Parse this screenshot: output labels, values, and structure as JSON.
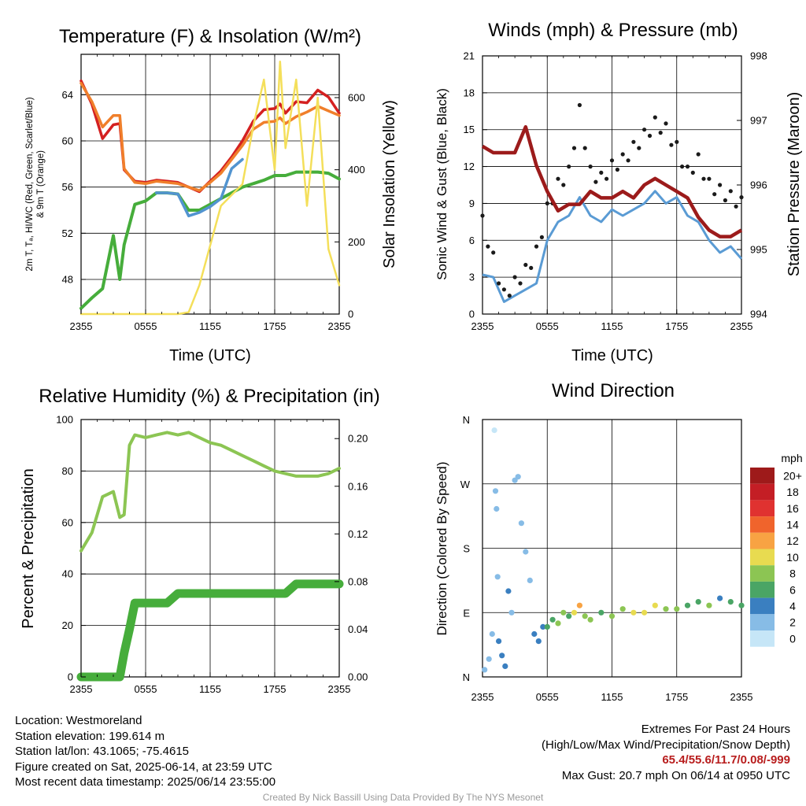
{
  "panels": {
    "temperature": {
      "title": "Temperature (F) & Insolation (W/m²)",
      "xlabel": "Time (UTC)",
      "ylabel_left_1": "2m T, Tₐ, HI/WC (Red, Green, Scarlet/Blue)",
      "ylabel_left_2": "& 9m T (Orange)",
      "ylabel_right": "Solar Insolation (Yellow)"
    },
    "winds": {
      "title": "Winds (mph) & Pressure (mb)",
      "xlabel": "Time (UTC)",
      "ylabel_left": "Sonic Wind & Gust (Blue, Black)",
      "ylabel_right": "Station Pressure (Maroon)"
    },
    "humidity": {
      "title": "Relative Humidity (%) & Precipitation (in)",
      "ylabel_left": "Percent & Precipitation"
    },
    "direction": {
      "title": "Wind Direction",
      "ylabel_left": "Direction (Colored By Speed)",
      "colorbar_title": "mph",
      "colorbar_labels": [
        "20+",
        "18",
        "16",
        "14",
        "12",
        "10",
        "8",
        "6",
        "4",
        "2",
        "0"
      ],
      "colorbar_colors": [
        "#9e1a1a",
        "#c41e25",
        "#e03230",
        "#f0642c",
        "#f8a343",
        "#e8db50",
        "#8cc553",
        "#4aa565",
        "#3a7fc0",
        "#87bce6",
        "#c6e6f7"
      ]
    }
  },
  "info": {
    "location": "Location: Westmoreland",
    "elevation": "Station elevation: 199.614 m",
    "latlon": "Station lat/lon: 43.1065; -75.4615",
    "created": "Figure created on Sat, 2025-06-14, at 23:59 UTC",
    "recent": "Most recent data timestamp: 2025/06/14 23:55:00"
  },
  "extremes": {
    "line1": "Extremes For Past 24 Hours",
    "line2": "(High/Low/Max Wind/Precipitation/Snow Depth)",
    "values": "65.4/55.6/11.7/0.08/-999",
    "gust": "Max Gust: 20.7 mph On 06/14 at 0950 UTC"
  },
  "credit": "Created By Nick Bassill Using Data Provided By The NYS Mesonet",
  "chart_data": [
    {
      "type": "line",
      "title": "Temperature (F) & Insolation (W/m2)",
      "xlabel": "Time (UTC)",
      "x_ticks": [
        "2355",
        "0555",
        "1155",
        "1755",
        "2355"
      ],
      "y_left_ticks": [
        48,
        52,
        56,
        60,
        64
      ],
      "y_left_range": [
        45,
        67.5
      ],
      "y_right_ticks": [
        0,
        200,
        400,
        600
      ],
      "y_right_range": [
        0,
        720
      ],
      "x_hours": [
        0,
        1,
        2,
        3,
        3.6,
        4,
        5,
        6,
        7,
        8,
        9,
        10,
        11,
        12,
        13,
        14,
        15,
        16,
        17,
        18,
        18.5,
        19,
        20,
        21,
        22,
        23,
        24
      ],
      "series": [
        {
          "color": "#d42020",
          "axis": "left",
          "values": [
            65.2,
            63.2,
            60.2,
            61.4,
            61.5,
            57.5,
            56.5,
            56.4,
            56.6,
            56.5,
            56.4,
            56.0,
            55.6,
            56.5,
            57.4,
            58.6,
            60.0,
            61.7,
            62.7,
            62.8,
            63.2,
            62.4,
            63.4,
            63.3,
            64.4,
            63.8,
            62.4
          ]
        },
        {
          "color": "#f07f2b",
          "axis": "left",
          "values": [
            65.0,
            63.4,
            61.2,
            62.2,
            62.2,
            57.6,
            56.4,
            56.3,
            56.5,
            56.4,
            56.3,
            56.0,
            55.7,
            56.4,
            57.2,
            58.4,
            59.6,
            61.0,
            61.6,
            61.7,
            62.0,
            61.5,
            62.1,
            62.5,
            63.0,
            62.6,
            62.2
          ]
        },
        {
          "color": "#46ad3b",
          "axis": "left",
          "values": [
            45.5,
            46.4,
            47.2,
            51.8,
            48.0,
            51.0,
            54.5,
            54.8,
            55.5,
            55.5,
            55.4,
            54.0,
            54.0,
            54.5,
            55.0,
            55.5,
            56.0,
            56.3,
            56.6,
            57.0,
            57.0,
            57.0,
            57.3,
            57.3,
            57.3,
            57.2,
            56.7
          ]
        },
        {
          "color": "#5294d0",
          "axis": "left",
          "values": [
            null,
            null,
            null,
            null,
            null,
            null,
            null,
            null,
            55.5,
            55.5,
            55.4,
            53.5,
            53.8,
            54.3,
            55.0,
            57.6,
            58.4,
            null,
            null,
            null,
            null,
            null,
            null,
            null,
            null,
            null,
            null
          ]
        },
        {
          "color": "#f4df5a",
          "axis": "right",
          "values": [
            0,
            0,
            0,
            0,
            0,
            0,
            0,
            0,
            0,
            0,
            0,
            5,
            80,
            190,
            300,
            330,
            360,
            520,
            650,
            400,
            700,
            460,
            650,
            300,
            600,
            180,
            80
          ]
        }
      ]
    },
    {
      "type": "line",
      "title": "Winds (mph) & Pressure (mb)",
      "xlabel": "Time (UTC)",
      "x_ticks": [
        "2355",
        "0555",
        "1155",
        "1755",
        "2355"
      ],
      "y_left_ticks": [
        0,
        3,
        6,
        9,
        12,
        15,
        18,
        21
      ],
      "y_left_range": [
        0,
        21
      ],
      "y_right_ticks": [
        994,
        995,
        996,
        997,
        998
      ],
      "y_right_range": [
        994,
        998
      ],
      "x_hours": [
        0,
        1,
        2,
        3,
        4,
        5,
        6,
        7,
        8,
        9,
        10,
        11,
        12,
        13,
        14,
        15,
        16,
        17,
        18,
        19,
        20,
        21,
        22,
        23,
        24
      ],
      "series": [
        {
          "color": "#5a9bd4",
          "axis": "left",
          "values": [
            3.2,
            3.0,
            1.0,
            1.5,
            2.0,
            2.5,
            6.0,
            7.5,
            8.0,
            9.5,
            8.0,
            7.5,
            8.5,
            8.0,
            8.5,
            9.0,
            10.0,
            9.0,
            9.5,
            8.0,
            7.5,
            6.0,
            5.0,
            5.5,
            4.5
          ]
        },
        {
          "color": "#1a1a1a",
          "axis": "left",
          "values": [
            8.0,
            5.0,
            2.0,
            3.0,
            4.0,
            5.5,
            9.0,
            11.0,
            12.0,
            17.0,
            12.0,
            11.5,
            12.5,
            13.0,
            14.0,
            15.0,
            16.0,
            15.5,
            14.0,
            12.0,
            13.0,
            11.0,
            10.5,
            10.0,
            9.5
          ]
        },
        {
          "color": "#9c1b1b",
          "axis": "right",
          "values": [
            996.6,
            996.5,
            996.5,
            996.5,
            996.9,
            996.3,
            995.9,
            995.6,
            995.7,
            995.7,
            995.9,
            995.8,
            995.8,
            995.9,
            995.8,
            996.0,
            996.1,
            996.0,
            995.9,
            995.8,
            995.5,
            995.3,
            995.2,
            995.2,
            995.3
          ]
        }
      ]
    },
    {
      "type": "line",
      "title": "Relative Humidity (%) & Precipitation (in)",
      "x_ticks": [
        "2355",
        "0555",
        "1155",
        "1755",
        "2355"
      ],
      "y_left_ticks": [
        0,
        20,
        40,
        60,
        80,
        100
      ],
      "y_left_range": [
        0,
        100
      ],
      "y_right_ticks": [
        "0.00",
        "0.04",
        "0.08",
        "0.12",
        "0.16",
        "0.20"
      ],
      "y_right_range": [
        0,
        0.216
      ],
      "x_hours": [
        0,
        1,
        2,
        3,
        3.6,
        4,
        4.5,
        5,
        6,
        7,
        8,
        9,
        10,
        11,
        12,
        13,
        14,
        15,
        16,
        17,
        18,
        19,
        20,
        21,
        22,
        23,
        24
      ],
      "series": [
        {
          "color": "#8cc553",
          "axis": "left",
          "values": [
            49,
            56,
            70,
            72,
            62,
            63,
            90,
            94,
            93,
            94,
            95,
            94,
            95,
            93,
            91,
            90,
            88,
            86,
            84,
            82,
            80,
            79,
            78,
            78,
            78,
            79,
            81
          ]
        },
        {
          "color": "#46ad3b",
          "axis": "right",
          "values": [
            0,
            0,
            0,
            0,
            0,
            0.02,
            0.04,
            0.062,
            0.062,
            0.062,
            0.062,
            0.07,
            0.07,
            0.07,
            0.07,
            0.07,
            0.07,
            0.07,
            0.07,
            0.07,
            0.07,
            0.07,
            0.078,
            0.078,
            0.078,
            0.078,
            0.078
          ]
        }
      ]
    },
    {
      "type": "scatter",
      "title": "Wind Direction",
      "x_ticks": [
        "2355",
        "0555",
        "1155",
        "1755",
        "2355"
      ],
      "y_ticks": [
        "N",
        "E",
        "S",
        "W",
        "N"
      ],
      "y_range_degrees": [
        0,
        360
      ],
      "colorbar_label": "mph",
      "colorbar_ticks": [
        "0",
        "2",
        "4",
        "6",
        "8",
        "10",
        "12",
        "14",
        "16",
        "18",
        "20+"
      ],
      "x_hours": [
        0.2,
        0.6,
        0.9,
        1.1,
        1.2,
        1.3,
        1.4,
        1.5,
        1.8,
        2.1,
        2.4,
        2.7,
        3.0,
        3.3,
        3.6,
        4.0,
        4.4,
        4.8,
        5.2,
        5.6,
        6.0,
        6.5,
        7.0,
        7.5,
        8.0,
        8.5,
        9.0,
        9.5,
        10.0,
        11.0,
        12.0,
        13.0,
        14.0,
        15.0,
        16.0,
        17.0,
        18.0,
        19.0,
        20.0,
        21.0,
        22.0,
        23.0,
        24.0
      ],
      "directions_deg": [
        10,
        25,
        60,
        345,
        260,
        235,
        140,
        50,
        30,
        15,
        120,
        90,
        275,
        280,
        215,
        175,
        135,
        60,
        50,
        70,
        70,
        80,
        75,
        90,
        85,
        90,
        100,
        85,
        80,
        90,
        85,
        95,
        90,
        90,
        100,
        95,
        95,
        100,
        105,
        100,
        110,
        105,
        100
      ],
      "speeds_mph": [
        1,
        2,
        1,
        0,
        1,
        2,
        2,
        3,
        3,
        4,
        3,
        2,
        1,
        1,
        2,
        1,
        2,
        3,
        4,
        4,
        5,
        6,
        7,
        8,
        6,
        9,
        12,
        7,
        8,
        6,
        8,
        7,
        9,
        10,
        9,
        8,
        7,
        6,
        5,
        8,
        4,
        5,
        6
      ]
    }
  ]
}
